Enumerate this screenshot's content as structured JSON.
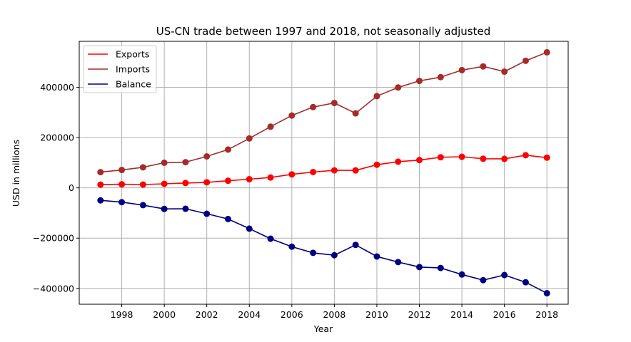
{
  "chart_data": {
    "type": "line",
    "title": "US-CN trade between 1997 and 2018, not seasonally adjusted",
    "xlabel": "Year",
    "ylabel": "USD in millions",
    "x": [
      1997,
      1998,
      1999,
      2000,
      2001,
      2002,
      2003,
      2004,
      2005,
      2006,
      2007,
      2008,
      2009,
      2010,
      2011,
      2012,
      2013,
      2014,
      2015,
      2016,
      2017,
      2018
    ],
    "series": [
      {
        "name": "Exports",
        "color": "#ff0000",
        "values": [
          12862,
          14241,
          13111,
          16185,
          19182,
          22128,
          28368,
          34428,
          41192,
          53673,
          62937,
          69733,
          69497,
          91911,
          104122,
          110516,
          121746,
          123657,
          115873,
          115602,
          129894,
          120148
        ]
      },
      {
        "name": "Imports",
        "color": "#a52a2a",
        "values": [
          62558,
          71169,
          81788,
          100018,
          102278,
          125193,
          152436,
          196682,
          243470,
          287774,
          321443,
          337773,
          296374,
          364953,
          399371,
          425619,
          440430,
          468475,
          483202,
          462420,
          505470,
          539243
        ]
      },
      {
        "name": "Balance",
        "color": "#000080",
        "values": [
          -49696,
          -56927,
          -68677,
          -83833,
          -83096,
          -103065,
          -124068,
          -162254,
          -202278,
          -234101,
          -258506,
          -268040,
          -226877,
          -273042,
          -295249,
          -315103,
          -318684,
          -344818,
          -367329,
          -346818,
          -375576,
          -419095
        ]
      }
    ],
    "x_ticks": [
      "1998",
      "2000",
      "2002",
      "2004",
      "2006",
      "2008",
      "2010",
      "2012",
      "2014",
      "2016",
      "2018"
    ],
    "y_ticks": [
      "−400000",
      "−200000",
      "0",
      "200000",
      "400000"
    ],
    "xlim": [
      1996.0,
      2019.0
    ],
    "ylim": [
      -463000,
      583000
    ],
    "grid": true,
    "legend_position": "top-left"
  }
}
